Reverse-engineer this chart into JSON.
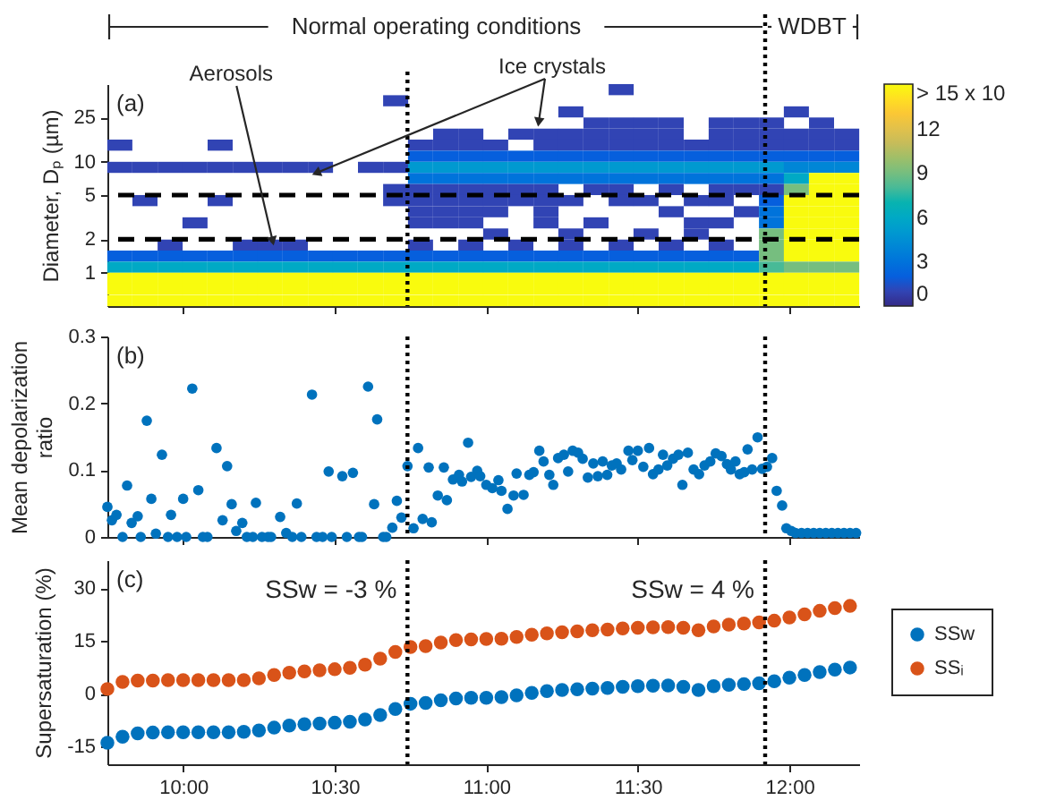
{
  "chart_data": [
    {
      "type": "scatter",
      "ylabel": "Diameter, Dₚ (µm)",
      "marker": "square",
      "annotations": [
        "(a)",
        "Normal operating conditions",
        "WDBT",
        {
          "text": "Aerosols",
          "x": 10.3,
          "y": 1.7
        },
        {
          "text": "Ice crystals",
          "x": 11.17,
          "y": 20
        }
      ],
      "x": [
        11.445,
        10.701,
        11.279,
        12.023,
        11.362,
        11.445,
        11.527,
        11.61,
        11.775,
        11.858,
        11.941,
        12.106,
        10.866,
        10.949,
        11.114,
        11.197,
        11.279,
        11.362,
        11.445,
        11.527,
        11.61,
        11.775,
        11.858,
        11.941,
        12.023,
        12.106,
        12.189,
        9.791,
        10.122,
        10.783,
        10.866,
        10.949,
        11.031,
        11.197,
        11.279,
        11.362,
        11.445,
        11.527,
        11.61,
        11.693,
        11.775,
        11.858,
        11.941,
        12.023,
        12.106,
        12.189,
        10.783,
        10.866,
        10.949,
        11.031,
        11.114,
        11.197,
        11.279,
        11.362,
        11.445,
        11.527,
        11.61,
        11.693,
        11.775,
        11.858,
        11.941,
        12.023,
        12.106,
        12.189,
        9.791,
        9.874,
        9.957,
        10.039,
        10.122,
        10.205,
        10.287,
        10.37,
        10.453,
        10.618,
        10.701,
        10.783,
        10.866,
        10.949,
        11.031,
        11.114,
        11.197,
        11.279,
        11.362,
        11.445,
        11.527,
        11.61,
        11.693,
        11.775,
        11.858,
        11.941,
        12.023,
        12.106,
        12.189,
        10.783,
        10.866,
        10.949,
        11.031,
        11.114,
        11.197,
        11.279,
        11.362,
        11.445,
        11.527,
        11.61,
        11.693,
        11.775,
        11.858,
        11.941,
        12.023,
        12.106,
        12.189,
        10.701,
        10.783,
        10.866,
        10.949,
        11.031,
        11.114,
        11.197,
        11.362,
        11.445,
        11.61,
        11.775,
        11.858,
        11.941,
        12.023,
        12.106,
        12.189,
        9.874,
        10.122,
        10.701,
        10.783,
        10.866,
        10.949,
        11.031,
        11.114,
        11.197,
        11.279,
        11.445,
        11.527,
        11.693,
        11.775,
        11.941,
        12.023,
        12.106,
        12.189,
        10.783,
        10.866,
        10.949,
        11.031,
        11.197,
        11.61,
        11.858,
        11.941,
        12.023,
        12.106,
        12.189,
        10.039,
        10.783,
        10.866,
        10.949,
        11.197,
        11.362,
        11.693,
        11.775,
        11.941,
        12.023,
        12.106,
        12.189,
        11.031,
        11.279,
        11.527,
        11.693,
        11.941,
        12.023,
        12.106,
        12.189,
        9.957,
        10.205,
        10.287,
        10.37,
        10.783,
        10.949,
        11.114,
        11.279,
        11.445,
        11.61,
        11.775,
        11.941,
        12.023,
        12.106,
        12.189,
        9.791,
        9.874,
        9.957,
        10.039,
        10.122,
        10.205,
        10.287,
        10.37,
        10.453,
        10.535,
        10.618,
        10.701,
        10.783,
        10.866,
        10.949,
        11.031,
        11.114,
        11.197,
        11.279,
        11.362,
        11.445,
        11.527,
        11.61,
        11.693,
        11.775,
        11.858,
        11.941,
        12.023,
        12.106,
        12.189,
        9.791,
        9.874,
        9.957,
        10.039,
        10.122,
        10.205,
        10.287,
        10.37,
        10.453,
        10.535,
        10.618,
        10.701,
        10.783,
        10.866,
        10.949,
        11.031,
        11.114,
        11.197,
        11.279,
        11.362,
        11.445,
        11.527,
        11.61,
        11.693,
        11.775,
        11.858,
        11.941,
        12.023,
        12.106,
        12.189,
        9.791,
        9.874,
        9.957,
        10.039,
        10.122,
        10.205,
        10.287,
        10.37,
        10.453,
        10.535,
        10.618,
        10.701,
        10.783,
        10.866,
        10.949,
        11.031,
        11.114,
        11.197,
        11.279,
        11.362,
        11.445,
        11.527,
        11.61,
        11.693,
        11.775,
        11.858,
        11.941,
        12.023,
        12.106,
        12.189,
        9.791,
        9.874,
        9.957,
        10.039,
        10.122,
        10.205,
        10.287,
        10.37,
        10.453,
        10.535,
        10.618,
        10.701,
        10.783,
        10.866,
        10.949,
        11.031,
        11.114,
        11.197,
        11.279,
        11.362,
        11.445,
        11.527,
        11.61,
        11.693,
        11.775,
        11.858,
        11.941,
        12.023,
        12.106,
        12.189,
        9.791,
        9.874,
        9.957,
        10.039,
        10.122,
        10.205,
        10.287,
        10.37,
        10.453,
        10.535,
        10.618,
        10.701,
        10.783,
        10.866,
        10.949,
        11.031,
        11.114,
        11.197,
        11.279,
        11.362,
        11.445,
        11.527,
        11.61,
        11.693,
        11.775,
        11.858,
        11.941,
        12.023,
        12.106,
        12.189
      ],
      "values": [
        44.6,
        35.4,
        28.1,
        28.1,
        22.3,
        22.3,
        22.3,
        22.3,
        22.3,
        22.3,
        22.3,
        22.3,
        17.7,
        17.7,
        17.7,
        17.7,
        17.7,
        17.7,
        17.7,
        17.7,
        17.7,
        17.7,
        17.7,
        17.7,
        17.7,
        17.7,
        17.7,
        14.1,
        14.1,
        14.1,
        14.1,
        14.1,
        14.1,
        14.1,
        14.1,
        14.1,
        14.1,
        14.1,
        14.1,
        14.1,
        14.1,
        14.1,
        14.1,
        14.1,
        14.1,
        14.1,
        11.2,
        11.2,
        11.2,
        11.2,
        11.2,
        11.2,
        11.2,
        11.2,
        11.2,
        11.2,
        11.2,
        11.2,
        11.2,
        11.2,
        11.2,
        11.2,
        11.2,
        11.2,
        8.89,
        8.89,
        8.89,
        8.89,
        8.89,
        8.89,
        8.89,
        8.89,
        8.89,
        8.89,
        8.89,
        8.89,
        8.89,
        8.89,
        8.89,
        8.89,
        8.89,
        8.89,
        8.89,
        8.89,
        8.89,
        8.89,
        8.89,
        8.89,
        8.89,
        8.89,
        8.89,
        8.89,
        8.89,
        7.06,
        7.06,
        7.06,
        7.06,
        7.06,
        7.06,
        7.06,
        7.06,
        7.06,
        7.06,
        7.06,
        7.06,
        7.06,
        7.06,
        7.06,
        7.06,
        7.06,
        7.06,
        5.61,
        5.61,
        5.61,
        5.61,
        5.61,
        5.61,
        5.61,
        5.61,
        5.61,
        5.61,
        5.61,
        5.61,
        5.61,
        5.61,
        5.61,
        5.61,
        4.46,
        4.46,
        4.46,
        4.46,
        4.46,
        4.46,
        4.46,
        4.46,
        4.46,
        4.46,
        4.46,
        4.46,
        4.46,
        4.46,
        4.46,
        4.46,
        4.46,
        4.46,
        3.54,
        3.54,
        3.54,
        3.54,
        3.54,
        3.54,
        3.54,
        3.54,
        3.54,
        3.54,
        3.54,
        2.81,
        2.81,
        2.81,
        2.81,
        2.81,
        2.81,
        2.81,
        2.81,
        2.81,
        2.81,
        2.81,
        2.81,
        2.23,
        2.23,
        2.23,
        2.23,
        2.23,
        2.23,
        2.23,
        2.23,
        1.77,
        1.77,
        1.77,
        1.77,
        1.77,
        1.77,
        1.77,
        1.77,
        1.77,
        1.77,
        1.77,
        1.77,
        1.77,
        1.77,
        1.77,
        1.41,
        1.41,
        1.41,
        1.41,
        1.41,
        1.41,
        1.41,
        1.41,
        1.41,
        1.41,
        1.41,
        1.41,
        1.41,
        1.41,
        1.41,
        1.41,
        1.41,
        1.41,
        1.41,
        1.41,
        1.41,
        1.41,
        1.41,
        1.41,
        1.41,
        1.41,
        1.41,
        1.41,
        1.41,
        1.41,
        1.12,
        1.12,
        1.12,
        1.12,
        1.12,
        1.12,
        1.12,
        1.12,
        1.12,
        1.12,
        1.12,
        1.12,
        1.12,
        1.12,
        1.12,
        1.12,
        1.12,
        1.12,
        1.12,
        1.12,
        1.12,
        1.12,
        1.12,
        1.12,
        1.12,
        1.12,
        1.12,
        1.12,
        1.12,
        1.12,
        0.89,
        0.89,
        0.89,
        0.89,
        0.89,
        0.89,
        0.89,
        0.89,
        0.89,
        0.89,
        0.89,
        0.89,
        0.89,
        0.89,
        0.89,
        0.89,
        0.89,
        0.89,
        0.89,
        0.89,
        0.89,
        0.89,
        0.89,
        0.89,
        0.89,
        0.89,
        0.89,
        0.89,
        0.89,
        0.89,
        0.71,
        0.71,
        0.71,
        0.71,
        0.71,
        0.71,
        0.71,
        0.71,
        0.71,
        0.71,
        0.71,
        0.71,
        0.71,
        0.71,
        0.71,
        0.71,
        0.71,
        0.71,
        0.71,
        0.71,
        0.71,
        0.71,
        0.71,
        0.71,
        0.71,
        0.71,
        0.71,
        0.71,
        0.71,
        0.71,
        0.56,
        0.56,
        0.56,
        0.56,
        0.56,
        0.56,
        0.56,
        0.56,
        0.56,
        0.56,
        0.56,
        0.56,
        0.56,
        0.56,
        0.56,
        0.56,
        0.56,
        0.56,
        0.56,
        0.56,
        0.56,
        0.56,
        0.56,
        0.56,
        0.56,
        0.56,
        0.56,
        0.56,
        0.56,
        0.56
      ],
      "cvalues": [
        1,
        1,
        1,
        1,
        1,
        1,
        1,
        1,
        1,
        1,
        1,
        1,
        1,
        1,
        1,
        1,
        1,
        1,
        1,
        1,
        1,
        1,
        1,
        1,
        1,
        1,
        1,
        1,
        1,
        1,
        1,
        1,
        1,
        1,
        1,
        1,
        1,
        1,
        1,
        1,
        1,
        1,
        1,
        1,
        1,
        1,
        2,
        2,
        2,
        2,
        2,
        2,
        2,
        2,
        2,
        2,
        2,
        2,
        2,
        2,
        2,
        2,
        2,
        2,
        1,
        1,
        1,
        1,
        1,
        1,
        1,
        1,
        1,
        1,
        1,
        5,
        5,
        5,
        5,
        5,
        5,
        5,
        5,
        5,
        5,
        5,
        5,
        5,
        5,
        5,
        4,
        4,
        4,
        3,
        3,
        3,
        3,
        3,
        3,
        3,
        3,
        3,
        3,
        3,
        3,
        3,
        3,
        3,
        6,
        15,
        15,
        1,
        1,
        1,
        1,
        1,
        1,
        1,
        1,
        1,
        1,
        1,
        1,
        1,
        9,
        15,
        15,
        1,
        1,
        1,
        1,
        1,
        1,
        1,
        1,
        1,
        1,
        1,
        1,
        1,
        1,
        2,
        15,
        15,
        15,
        1,
        1,
        1,
        1,
        1,
        1,
        1,
        3,
        15,
        15,
        15,
        1,
        1,
        1,
        1,
        1,
        1,
        1,
        1,
        3,
        15,
        15,
        15,
        1,
        1,
        1,
        1,
        9,
        15,
        15,
        15,
        1,
        1,
        1,
        1,
        1,
        1,
        1,
        1,
        1,
        1,
        1,
        9,
        15,
        15,
        15,
        2,
        2,
        2,
        2,
        2,
        2,
        2,
        2,
        2,
        2,
        2,
        2,
        2,
        2,
        2,
        2,
        2,
        2,
        2,
        2,
        2,
        2,
        2,
        2,
        2,
        2,
        9,
        15,
        15,
        15,
        6,
        6,
        6,
        6,
        6,
        6,
        6,
        6,
        6,
        6,
        6,
        6,
        6,
        6,
        6,
        6,
        6,
        6,
        6,
        6,
        6,
        6,
        6,
        6,
        6,
        6,
        8,
        9,
        9,
        9,
        15,
        15,
        15,
        15,
        15,
        15,
        15,
        15,
        15,
        15,
        15,
        15,
        15,
        15,
        15,
        15,
        15,
        15,
        15,
        15,
        15,
        15,
        15,
        15,
        15,
        15,
        15,
        15,
        15,
        15,
        15,
        15,
        15,
        15,
        15,
        15,
        15,
        15,
        15,
        15,
        15,
        15,
        15,
        15,
        15,
        15,
        15,
        15,
        15,
        15,
        15,
        15,
        15,
        15,
        15,
        15,
        15,
        15,
        15,
        15,
        15,
        15,
        15,
        15,
        15,
        15,
        15,
        15,
        15,
        15,
        15,
        15,
        15,
        15,
        15,
        15,
        15,
        15,
        15,
        15,
        15,
        15,
        15,
        15,
        15,
        15,
        15,
        15,
        15,
        15
      ],
      "xlim": [
        9.75,
        12.23
      ],
      "xticks": [
        10,
        10.5,
        11,
        11.5,
        12
      ],
      "ylim": [
        0.5,
        50
      ],
      "yticks": [
        1,
        2,
        5,
        10,
        25
      ],
      "log": "y",
      "tick_labels": "y",
      "clim": [
        0,
        15
      ],
      "cticks": [
        0,
        3,
        6,
        9,
        12,
        {
          "value": 15,
          "label": "> 15 x 10"
        }
      ],
      "ref_lines": [
        {
          "axis": "x",
          "value": 10.74,
          "color": "#000000",
          "line_style": "dotted"
        },
        {
          "axis": "x",
          "value": 11.92,
          "color": "#000000",
          "line_style": "dotted"
        },
        {
          "axis": "y",
          "value": 2,
          "color": "#000000",
          "line_style": "dashed"
        },
        {
          "axis": "y",
          "value": 5,
          "color": "#000000",
          "line_style": "dashed"
        }
      ]
    },
    {
      "type": "scatter",
      "ylabel": "Mean depolarization ratio",
      "annotations": [
        "(b)"
      ],
      "marker": "circle",
      "x": [
        9.75,
        9.765,
        9.78,
        9.8,
        9.815,
        9.83,
        9.85,
        9.86,
        9.88,
        9.895,
        9.91,
        9.93,
        9.95,
        9.96,
        9.98,
        10,
        10.01,
        10.03,
        10.05,
        10.065,
        10.08,
        10.11,
        10.13,
        10.145,
        10.16,
        10.175,
        10.195,
        10.21,
        10.23,
        10.24,
        10.26,
        10.28,
        10.29,
        10.32,
        10.34,
        10.36,
        10.375,
        10.39,
        10.425,
        10.44,
        10.46,
        10.48,
        10.49,
        10.525,
        10.54,
        10.56,
        10.58,
        10.59,
        10.61,
        10.63,
        10.64,
        10.66,
        10.67,
        10.69,
        10.705,
        10.72,
        10.74,
        10.76,
        10.775,
        10.79,
        10.81,
        10.82,
        10.84,
        10.86,
        10.87,
        10.89,
        10.91,
        10.92,
        10.94,
        10.95,
        10.97,
        10.98,
        11,
        11.02,
        11.04,
        11.05,
        11.07,
        11.09,
        11.1,
        11.123,
        11.142,
        11.156,
        11.175,
        11.189,
        11.208,
        11.221,
        11.237,
        11.256,
        11.27,
        11.285,
        11.303,
        11.318,
        11.335,
        11.353,
        11.368,
        11.384,
        11.399,
        11.414,
        11.43,
        11.445,
        11.469,
        11.482,
        11.5,
        11.518,
        11.537,
        11.55,
        11.568,
        11.583,
        11.597,
        11.616,
        11.634,
        11.647,
        11.665,
        11.684,
        11.702,
        11.72,
        11.739,
        11.757,
        11.776,
        11.794,
        11.807,
        11.822,
        11.836,
        11.851,
        11.862,
        11.877,
        11.895,
        11.91,
        11.926,
        11.943,
        11.958,
        11.976,
        11.99,
        12.006,
        12.02,
        12.04,
        12.06,
        12.08,
        12.1,
        12.12,
        12.14,
        12.16,
        12.18,
        12.2,
        12.22
      ],
      "series": [
        {
          "color": "#0072bd",
          "values": [
            0.045,
            0.025,
            0.033,
            0,
            0.077,
            0.021,
            0.031,
            0,
            0.174,
            0.057,
            0.005,
            0.123,
            0,
            0.033,
            0,
            0.057,
            0,
            0.222,
            0.07,
            0,
            0,
            0.133,
            0.025,
            0.106,
            0.049,
            0.009,
            0.021,
            0,
            0,
            0.051,
            0,
            0,
            0,
            0.03,
            0.006,
            0,
            0.05,
            0,
            0.213,
            0,
            0,
            0.098,
            0,
            0.091,
            0,
            0.096,
            0,
            0,
            0.225,
            0.049,
            0.176,
            0,
            0,
            0.014,
            0.054,
            0.029,
            0.106,
            0.013,
            0.133,
            0.027,
            0.104,
            0.022,
            0.062,
            0.104,
            0.055,
            0.086,
            0.093,
            0.083,
            0.141,
            0.09,
            0.099,
            0.091,
            0.078,
            0.073,
            0.085,
            0.069,
            0.042,
            0.062,
            0.095,
            0.063,
            0.093,
            0.097,
            0.129,
            0.113,
            0.093,
            0.078,
            0.118,
            0.123,
            0.098,
            0.129,
            0.126,
            0.117,
            0.089,
            0.11,
            0.091,
            0.113,
            0.093,
            0.107,
            0.11,
            0.101,
            0.129,
            0.115,
            0.129,
            0.105,
            0.133,
            0.094,
            0.101,
            0.123,
            0.107,
            0.117,
            0.123,
            0.078,
            0.126,
            0.101,
            0.094,
            0.107,
            0.113,
            0.125,
            0.121,
            0.109,
            0.101,
            0.113,
            0.094,
            0.097,
            0.131,
            0.101,
            0.149,
            0.102,
            0.105,
            0.118,
            0.069,
            0.047,
            0.013,
            0.009,
            0.006,
            0.006,
            0.006,
            0.006,
            0.006,
            0.006,
            0.006,
            0.006,
            0.006,
            0.006,
            0.006
          ]
        }
      ],
      "xlim": [
        9.75,
        12.23
      ],
      "xticks": [
        10,
        10.5,
        11,
        11.5,
        12
      ],
      "ylim": [
        0,
        0.3
      ],
      "yticks": [
        0,
        0.1,
        0.2,
        0.3
      ],
      "tick_labels": "y",
      "ref_lines": [
        {
          "axis": "x",
          "value": 10.74,
          "color": "#000000",
          "line_style": "dotted"
        },
        {
          "axis": "x",
          "value": 11.92,
          "color": "#000000",
          "line_style": "dotted"
        }
      ]
    },
    {
      "type": "scatter",
      "ylabel": "Supersaturation (%)",
      "annotations": [
        "(c)",
        "SSw = -3 %",
        "SSw = 4 %"
      ],
      "marker": "circle",
      "legend": "right",
      "x": [
        9.75,
        9.8,
        9.85,
        9.9,
        9.95,
        10,
        10.05,
        10.1,
        10.15,
        10.2,
        10.25,
        10.3,
        10.35,
        10.4,
        10.45,
        10.5,
        10.55,
        10.6,
        10.65,
        10.7,
        10.75,
        10.8,
        10.85,
        10.9,
        10.95,
        11,
        11.05,
        11.1,
        11.15,
        11.2,
        11.25,
        11.3,
        11.35,
        11.4,
        11.45,
        11.5,
        11.55,
        11.6,
        11.65,
        11.7,
        11.75,
        11.8,
        11.85,
        11.9,
        11.95,
        12,
        12.05,
        12.1,
        12.15,
        12.2
      ],
      "series": [
        {
          "name": "SSw",
          "color": "#0072bd",
          "values": [
            -13.9,
            -12.2,
            -11.2,
            -11.0,
            -10.9,
            -10.9,
            -10.9,
            -10.9,
            -10.9,
            -10.8,
            -10.4,
            -9.6,
            -9.0,
            -8.6,
            -8.4,
            -8.2,
            -7.9,
            -7.3,
            -6.0,
            -4.3,
            -2.8,
            -2.6,
            -1.8,
            -1.3,
            -1.1,
            -1.1,
            -0.9,
            -0.4,
            0.3,
            0.8,
            1.1,
            1.3,
            1.5,
            1.7,
            2.0,
            2.2,
            2.3,
            2.4,
            2.0,
            1.1,
            2.2,
            2.6,
            2.8,
            3.0,
            3.6,
            4.6,
            5.4,
            6.2,
            6.9,
            7.5
          ]
        },
        {
          "name": "SSᵢ",
          "color": "#d95319",
          "values": [
            1.4,
            3.4,
            3.8,
            3.8,
            3.9,
            3.9,
            3.9,
            3.9,
            3.9,
            3.9,
            4.4,
            5.4,
            6.0,
            6.4,
            6.7,
            7.0,
            7.4,
            8.3,
            10.0,
            11.9,
            13.3,
            13.6,
            14.6,
            15.3,
            15.5,
            15.6,
            15.7,
            16.2,
            16.8,
            17.2,
            17.5,
            17.8,
            18.1,
            18.3,
            18.6,
            18.8,
            18.9,
            19.0,
            18.8,
            18.1,
            19.2,
            19.7,
            20.0,
            20.3,
            20.8,
            21.7,
            22.6,
            23.6,
            24.4,
            25.0
          ]
        }
      ],
      "xlim": [
        9.75,
        12.23
      ],
      "xticks": [
        {
          "value": 10,
          "label": "10:00"
        },
        {
          "value": 10.5,
          "label": "10:30"
        },
        {
          "value": 11,
          "label": "11:00"
        },
        {
          "value": 11.5,
          "label": "11:30"
        },
        {
          "value": 12,
          "label": "12:00"
        }
      ],
      "ylim": [
        -20,
        38
      ],
      "yticks": [
        -15,
        0,
        15,
        30
      ],
      "ref_lines": [
        {
          "axis": "x",
          "value": 10.74,
          "color": "#000000",
          "line_style": "dotted"
        },
        {
          "axis": "x",
          "value": 11.92,
          "color": "#000000",
          "line_style": "dotted"
        }
      ]
    }
  ]
}
